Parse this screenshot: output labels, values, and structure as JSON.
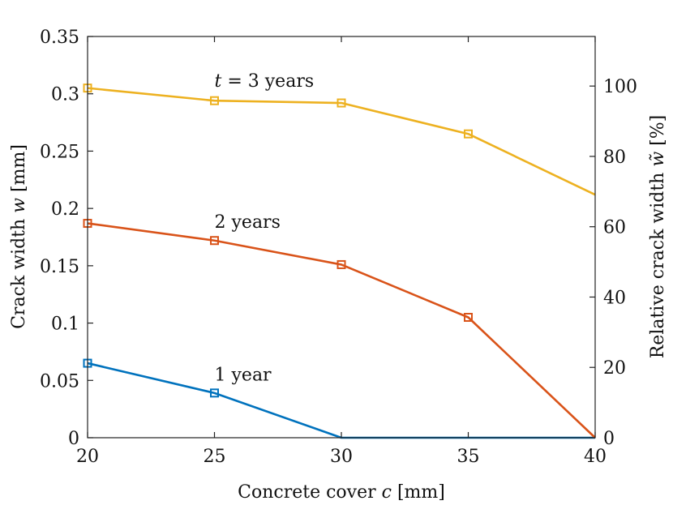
{
  "chart_data": {
    "type": "line",
    "xlabel": "Concrete cover c [mm]",
    "ylabel": "Crack width w [mm]",
    "y2label": "Relative crack width w̃ [%]",
    "x": [
      20,
      25,
      30,
      35,
      40
    ],
    "xlim": [
      20,
      40
    ],
    "ylim": [
      0,
      0.35
    ],
    "y2lim": [
      0,
      114.1
    ],
    "xticks": [
      "20",
      "25",
      "30",
      "35",
      "40"
    ],
    "yticks": [
      "0",
      "0.05",
      "0.1",
      "0.15",
      "0.2",
      "0.25",
      "0.3",
      "0.35"
    ],
    "y2ticks": [
      "0",
      "20",
      "40",
      "60",
      "80",
      "100"
    ],
    "series": [
      {
        "name": "1 year",
        "color": "#0072BD",
        "values": [
          0.065,
          0.039,
          0.0,
          0.0,
          0.0
        ],
        "markers": [
          true,
          true,
          false,
          false,
          false
        ]
      },
      {
        "name": "2 years",
        "color": "#D95319",
        "values": [
          0.187,
          0.172,
          0.151,
          0.105,
          0.0
        ],
        "markers": [
          true,
          true,
          true,
          true,
          false
        ]
      },
      {
        "name": "t = 3 years",
        "color": "#EDB120",
        "values": [
          0.305,
          0.294,
          0.292,
          0.265,
          0.212
        ],
        "markers": [
          true,
          true,
          true,
          true,
          false
        ]
      }
    ],
    "annotations": [
      {
        "text": "t = 3 years",
        "x": 25,
        "y": 0.306
      },
      {
        "text": "2 years",
        "x": 25,
        "y": 0.183
      },
      {
        "text": "1 year",
        "x": 25,
        "y": 0.05
      }
    ]
  }
}
